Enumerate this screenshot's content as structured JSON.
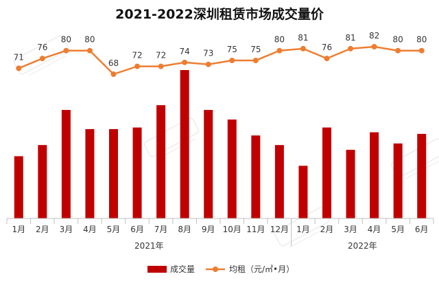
{
  "chart_data": {
    "type": "bar",
    "title": "2021-2022深圳租赁市场成交量价",
    "categories": [
      "1月",
      "2月",
      "3月",
      "4月",
      "5月",
      "6月",
      "7月",
      "8月",
      "9月",
      "10月",
      "11月",
      "12月",
      "1月",
      "2月",
      "3月",
      "4月",
      "5月",
      "6月"
    ],
    "year_groups": [
      {
        "label": "2021年",
        "count": 12
      },
      {
        "label": "2022年",
        "count": 6
      }
    ],
    "series": [
      {
        "name": "成交量",
        "type": "bar",
        "color": "#c00000",
        "values": [
          39,
          46,
          68,
          56,
          56,
          57,
          71,
          93,
          68,
          62,
          52,
          46,
          33,
          57,
          43,
          54,
          47,
          53
        ]
      },
      {
        "name": "均租（元/㎡•月）",
        "type": "line",
        "color": "#ed7d31",
        "values": [
          71,
          76,
          80,
          80,
          68,
          72,
          72,
          74,
          73,
          75,
          75,
          80,
          81,
          76,
          81,
          82,
          80,
          80
        ]
      }
    ],
    "legend_position": "bottom",
    "grid": false
  }
}
